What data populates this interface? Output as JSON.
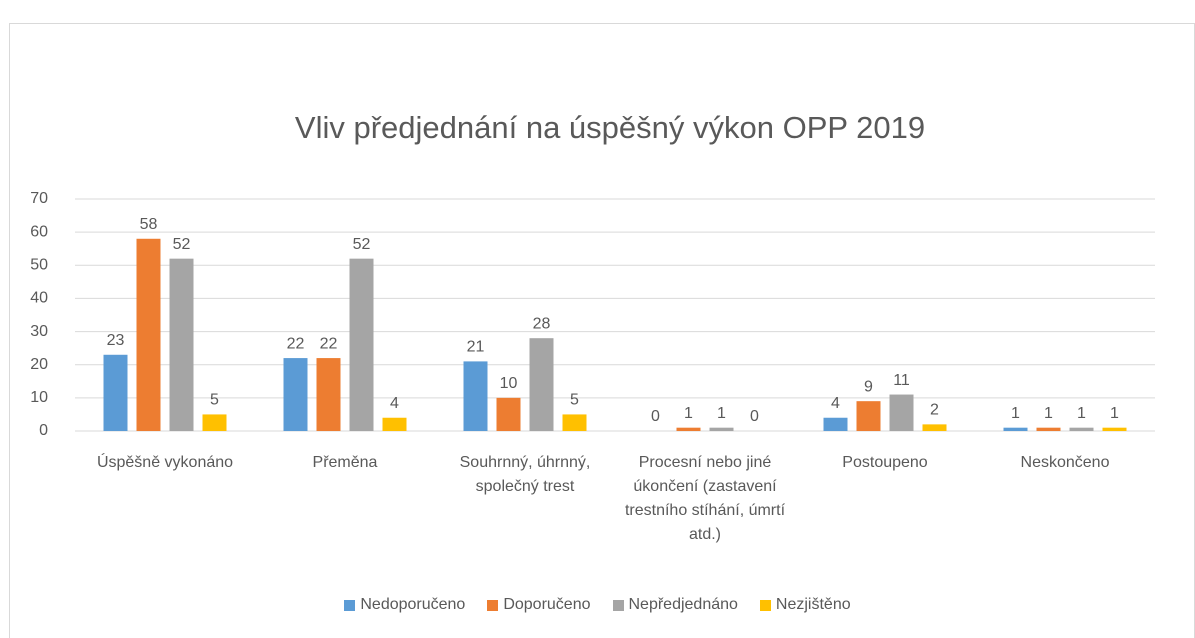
{
  "chart_data": {
    "type": "bar",
    "title": "Vliv předjednání na úspěšný výkon OPP 2019",
    "categories": [
      "Úspěšně vykonáno",
      "Přeměna",
      "Souhrnný, úhrnný, společný trest",
      "Procesní nebo jiné úkončení (zastavení trestního stíhání, úmrtí atd.)",
      "Postoupeno",
      "Neskončeno"
    ],
    "series": [
      {
        "name": "Nedoporučeno",
        "color": "#5b9bd5",
        "values": [
          23,
          22,
          21,
          0,
          4,
          1
        ]
      },
      {
        "name": "Doporučeno",
        "color": "#ed7d31",
        "values": [
          58,
          22,
          10,
          1,
          9,
          1
        ]
      },
      {
        "name": "Nepředjednáno",
        "color": "#a5a5a5",
        "values": [
          52,
          52,
          28,
          1,
          11,
          1
        ]
      },
      {
        "name": "Nezjištěno",
        "color": "#ffc000",
        "values": [
          5,
          4,
          5,
          0,
          2,
          1
        ]
      }
    ],
    "ylim": [
      0,
      70
    ],
    "yticks": [
      0,
      10,
      20,
      30,
      40,
      50,
      60,
      70
    ],
    "grid": true,
    "legend": "bottom"
  }
}
